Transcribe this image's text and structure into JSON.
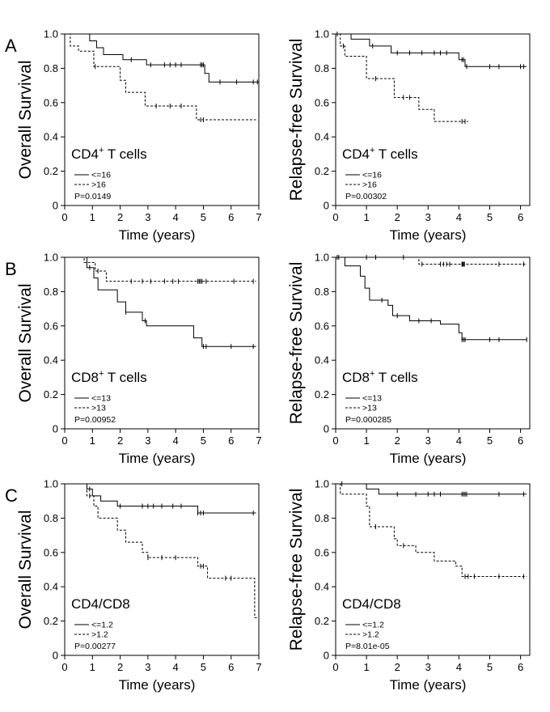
{
  "chart_data": [
    {
      "panel": "A",
      "type": "line",
      "title": "",
      "xlabel": "Time (years)",
      "ylabel": "Overall Survival",
      "xlim": [
        0,
        7
      ],
      "ylim": [
        0,
        1
      ],
      "xticks": [
        "0",
        "1",
        "2",
        "3",
        "4",
        "5",
        "6",
        "7"
      ],
      "yticks": [
        "0",
        "0.2",
        "0.4",
        "0.6",
        "0.8",
        "1.0"
      ],
      "annotation": "CD4",
      "annotation_sup": "+",
      "annotation_suffix": " T cells",
      "pvalue": "P=0.0149",
      "series": [
        {
          "name": "<=16",
          "style": "solid",
          "steps": [
            [
              0,
              1.0
            ],
            [
              0.9,
              0.96
            ],
            [
              1.15,
              0.92
            ],
            [
              1.4,
              0.88
            ],
            [
              2.1,
              0.85
            ],
            [
              2.95,
              0.82
            ],
            [
              5.05,
              0.77
            ],
            [
              5.2,
              0.72
            ]
          ],
          "end": 7.0,
          "censors": [
            2.4,
            3.1,
            3.6,
            3.8,
            4.0,
            4.2,
            4.9,
            4.95,
            5.0,
            5.6,
            6.2,
            6.8,
            6.95
          ]
        },
        {
          "name": ">16",
          "style": "dashed",
          "steps": [
            [
              0,
              1.0
            ],
            [
              0.2,
              0.93
            ],
            [
              0.5,
              0.9
            ],
            [
              1.05,
              0.81
            ],
            [
              2.0,
              0.73
            ],
            [
              2.2,
              0.66
            ],
            [
              2.9,
              0.58
            ],
            [
              4.75,
              0.5
            ]
          ],
          "end": 6.9,
          "censors": [
            1.1,
            3.3,
            3.8,
            4.2,
            4.9,
            5.0
          ]
        }
      ]
    },
    {
      "panel": "",
      "type": "line",
      "title": "",
      "xlabel": "Time (years)",
      "ylabel": "Relapse-free Survival",
      "xlim": [
        0,
        6.3
      ],
      "ylim": [
        0,
        1
      ],
      "xticks": [
        "0",
        "1",
        "2",
        "3",
        "4",
        "5",
        "6"
      ],
      "yticks": [
        "0",
        "0.2",
        "0.4",
        "0.6",
        "0.8",
        "1.0"
      ],
      "annotation": "CD4",
      "annotation_sup": "+",
      "annotation_suffix": " T cells",
      "pvalue": "P=0.00302",
      "series": [
        {
          "name": "<=16",
          "style": "solid",
          "steps": [
            [
              0,
              1.0
            ],
            [
              0.5,
              0.97
            ],
            [
              1.1,
              0.93
            ],
            [
              1.8,
              0.89
            ],
            [
              4.0,
              0.85
            ],
            [
              4.2,
              0.81
            ]
          ],
          "end": 6.2,
          "censors": [
            0.05,
            1.2,
            2.0,
            2.4,
            2.8,
            3.2,
            3.4,
            3.6,
            4.1,
            4.15,
            4.25,
            5.0,
            5.3,
            6.0,
            6.1
          ]
        },
        {
          "name": ">16",
          "style": "dashed",
          "steps": [
            [
              0,
              1.0
            ],
            [
              0.15,
              0.93
            ],
            [
              0.3,
              0.87
            ],
            [
              1.0,
              0.74
            ],
            [
              1.9,
              0.63
            ],
            [
              2.7,
              0.56
            ],
            [
              3.2,
              0.49
            ]
          ],
          "end": 4.3,
          "censors": [
            0.25,
            1.3,
            2.2,
            2.4,
            4.1,
            4.2
          ]
        }
      ]
    },
    {
      "panel": "B",
      "type": "line",
      "title": "",
      "xlabel": "Time (years)",
      "ylabel": "Overall Survival",
      "xlim": [
        0,
        7
      ],
      "ylim": [
        0,
        1
      ],
      "xticks": [
        "0",
        "1",
        "2",
        "3",
        "4",
        "5",
        "6",
        "7"
      ],
      "yticks": [
        "0",
        "0.2",
        "0.4",
        "0.6",
        "0.8",
        "1.0"
      ],
      "annotation": "CD8",
      "annotation_sup": "+",
      "annotation_suffix": " T cells",
      "pvalue": "P=0.00952",
      "series": [
        {
          "name": "<=13",
          "style": "solid",
          "steps": [
            [
              0,
              1.0
            ],
            [
              0.8,
              0.94
            ],
            [
              1.05,
              0.88
            ],
            [
              1.2,
              0.81
            ],
            [
              1.9,
              0.74
            ],
            [
              2.2,
              0.68
            ],
            [
              2.8,
              0.63
            ],
            [
              2.95,
              0.6
            ],
            [
              4.65,
              0.53
            ],
            [
              4.95,
              0.48
            ]
          ],
          "end": 6.9,
          "censors": [
            0.9,
            2.2,
            2.9,
            5.0,
            5.1,
            6.0,
            6.8
          ]
        },
        {
          "name": ">13",
          "style": "dashed",
          "steps": [
            [
              0,
              1.0
            ],
            [
              0.7,
              0.97
            ],
            [
              1.1,
              0.92
            ],
            [
              1.5,
              0.86
            ]
          ],
          "end": 6.9,
          "censors": [
            1.2,
            2.4,
            2.8,
            3.1,
            3.6,
            3.9,
            4.1,
            4.8,
            4.85,
            4.9,
            4.95,
            5.1,
            6.1,
            6.8
          ]
        }
      ]
    },
    {
      "panel": "",
      "type": "line",
      "title": "",
      "xlabel": "Time (years)",
      "ylabel": "Relapse-free Survival",
      "xlim": [
        0,
        6.3
      ],
      "ylim": [
        0,
        1
      ],
      "xticks": [
        "0",
        "1",
        "2",
        "3",
        "4",
        "5",
        "6"
      ],
      "yticks": [
        "0",
        "0.2",
        "0.4",
        "0.6",
        "0.8",
        "1.0"
      ],
      "annotation": "CD8",
      "annotation_sup": "+",
      "annotation_suffix": " T cells",
      "pvalue": "P=0.000285",
      "series": [
        {
          "name": "<=13",
          "style": "solid",
          "steps": [
            [
              0,
              1.0
            ],
            [
              0.3,
              0.95
            ],
            [
              0.8,
              0.89
            ],
            [
              0.95,
              0.82
            ],
            [
              1.1,
              0.75
            ],
            [
              1.7,
              0.72
            ],
            [
              1.85,
              0.66
            ],
            [
              2.4,
              0.63
            ],
            [
              3.4,
              0.61
            ],
            [
              4.0,
              0.56
            ],
            [
              4.1,
              0.52
            ]
          ],
          "end": 6.2,
          "censors": [
            0.05,
            1.5,
            2.0,
            2.7,
            3.1,
            4.1,
            4.15,
            4.2,
            5.0,
            5.3,
            6.2
          ]
        },
        {
          "name": ">13",
          "style": "dashed",
          "steps": [
            [
              0,
              1.0
            ],
            [
              2.7,
              0.96
            ]
          ],
          "end": 6.2,
          "censors": [
            0.1,
            1.0,
            1.3,
            2.2,
            2.8,
            3.4,
            3.5,
            3.6,
            3.7,
            4.1,
            4.12,
            4.15,
            4.18,
            5.3,
            6.1
          ]
        }
      ]
    },
    {
      "panel": "C",
      "type": "line",
      "title": "",
      "xlabel": "Time (years)",
      "ylabel": "Overall Survival",
      "xlim": [
        0,
        7
      ],
      "ylim": [
        0,
        1
      ],
      "xticks": [
        "0",
        "1",
        "2",
        "3",
        "4",
        "5",
        "6",
        "7"
      ],
      "yticks": [
        "0",
        "0.2",
        "0.4",
        "0.6",
        "0.8",
        "1.0"
      ],
      "annotation": "CD4/CD8",
      "annotation_sup": "",
      "annotation_suffix": "",
      "pvalue": "P=0.00277",
      "series": [
        {
          "name": "<=1.2",
          "style": "solid",
          "steps": [
            [
              0,
              1.0
            ],
            [
              0.8,
              0.97
            ],
            [
              1.0,
              0.93
            ],
            [
              1.3,
              0.9
            ],
            [
              1.9,
              0.87
            ],
            [
              4.8,
              0.83
            ]
          ],
          "end": 6.9,
          "censors": [
            0.9,
            2.0,
            2.8,
            3.0,
            3.2,
            3.5,
            3.9,
            4.2,
            4.8,
            4.9,
            5.0,
            6.8
          ]
        },
        {
          "name": ">1.2",
          "style": "dashed",
          "steps": [
            [
              0,
              1.0
            ],
            [
              0.8,
              0.93
            ],
            [
              1.05,
              0.87
            ],
            [
              1.2,
              0.8
            ],
            [
              1.9,
              0.73
            ],
            [
              2.2,
              0.66
            ],
            [
              2.8,
              0.6
            ],
            [
              3.0,
              0.57
            ],
            [
              4.8,
              0.52
            ],
            [
              5.15,
              0.45
            ],
            [
              6.85,
              0.22
            ]
          ],
          "end": 6.95,
          "censors": [
            0.9,
            3.0,
            3.5,
            4.0,
            4.9,
            5.0,
            5.8,
            6.0
          ]
        }
      ]
    },
    {
      "panel": "",
      "type": "line",
      "title": "",
      "xlabel": "Time (years)",
      "ylabel": "Relapse-free Survival",
      "xlim": [
        0,
        6.3
      ],
      "ylim": [
        0,
        1
      ],
      "xticks": [
        "0",
        "1",
        "2",
        "3",
        "4",
        "5",
        "6"
      ],
      "yticks": [
        "0",
        "0.2",
        "0.4",
        "0.6",
        "0.8",
        "1.0"
      ],
      "annotation": "CD4/CD8",
      "annotation_sup": "",
      "annotation_suffix": "",
      "pvalue": "P=8.01e-05",
      "series": [
        {
          "name": "<=1.2",
          "style": "solid",
          "steps": [
            [
              0,
              1.0
            ],
            [
              1.0,
              0.97
            ],
            [
              1.4,
              0.94
            ]
          ],
          "end": 6.2,
          "censors": [
            0.2,
            2.0,
            2.6,
            3.0,
            3.2,
            3.4,
            4.1,
            4.15,
            4.2,
            4.25,
            5.3,
            6.1
          ]
        },
        {
          "name": ">1.2",
          "style": "dashed",
          "steps": [
            [
              0,
              1.0
            ],
            [
              0.15,
              0.94
            ],
            [
              1.0,
              0.87
            ],
            [
              1.1,
              0.75
            ],
            [
              1.9,
              0.68
            ],
            [
              2.0,
              0.64
            ],
            [
              2.6,
              0.6
            ],
            [
              3.2,
              0.55
            ],
            [
              3.9,
              0.52
            ],
            [
              4.1,
              0.46
            ]
          ],
          "end": 6.2,
          "censors": [
            1.3,
            2.2,
            4.2,
            4.3,
            4.5,
            5.3,
            6.1
          ]
        }
      ]
    }
  ]
}
